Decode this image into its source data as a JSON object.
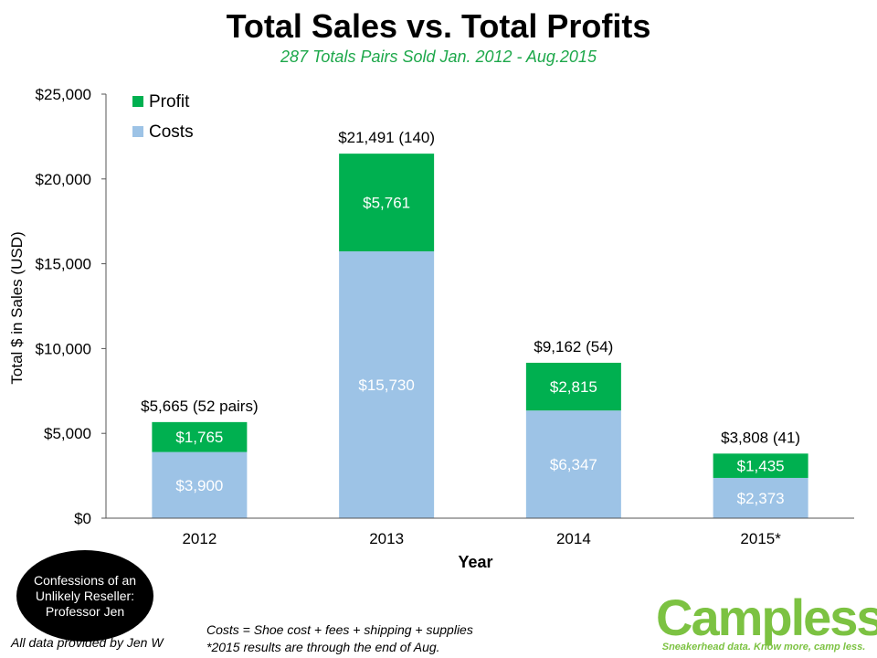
{
  "title": "Total Sales vs. Total Profits",
  "subtitle": "287 Totals Pairs Sold Jan. 2012 - Aug.2015",
  "colors": {
    "profit": "#00b050",
    "costs": "#9dc3e6",
    "subtitle": "#1ea84b",
    "brand": "#7cc242"
  },
  "chart_data": {
    "type": "bar",
    "stacked": true,
    "categories": [
      "2012",
      "2013",
      "2014",
      "2015*"
    ],
    "series": [
      {
        "name": "Costs",
        "values": [
          3900,
          15730,
          6347,
          2373
        ],
        "labels": [
          "$3,900",
          "$15,730",
          "$6,347",
          "$2,373"
        ]
      },
      {
        "name": "Profit",
        "values": [
          1765,
          5761,
          2815,
          1435
        ],
        "labels": [
          "$1,765",
          "$5,761",
          "$2,815",
          "$1,435"
        ]
      }
    ],
    "totals": [
      5665,
      21491,
      9162,
      3808
    ],
    "total_labels": [
      "$5,665 (52 pairs)",
      "$21,491 (140)",
      "$9,162 (54)",
      "$3,808 (41)"
    ],
    "xlabel": "Year",
    "ylabel": "Total $ in Sales (USD)",
    "ylim": [
      0,
      25000
    ],
    "yticks": [
      0,
      5000,
      10000,
      15000,
      20000,
      25000
    ],
    "ytick_labels": [
      "$0",
      "$5,000",
      "$10,000",
      "$15,000",
      "$20,000",
      "$25,000"
    ],
    "legend": [
      "Profit",
      "Costs"
    ],
    "legend_position": "top-left",
    "grid": false
  },
  "badge": [
    "Confessions of an",
    "Unlikely Reseller:",
    "Professor Jen"
  ],
  "credit": "All data provided by Jen W",
  "notes": [
    "Costs = Shoe cost + fees + shipping + supplies",
    "*2015 results are through the end of Aug."
  ],
  "logo": {
    "name": "Campless",
    "tagline": "Sneakerhead data.  Know more, camp less."
  }
}
